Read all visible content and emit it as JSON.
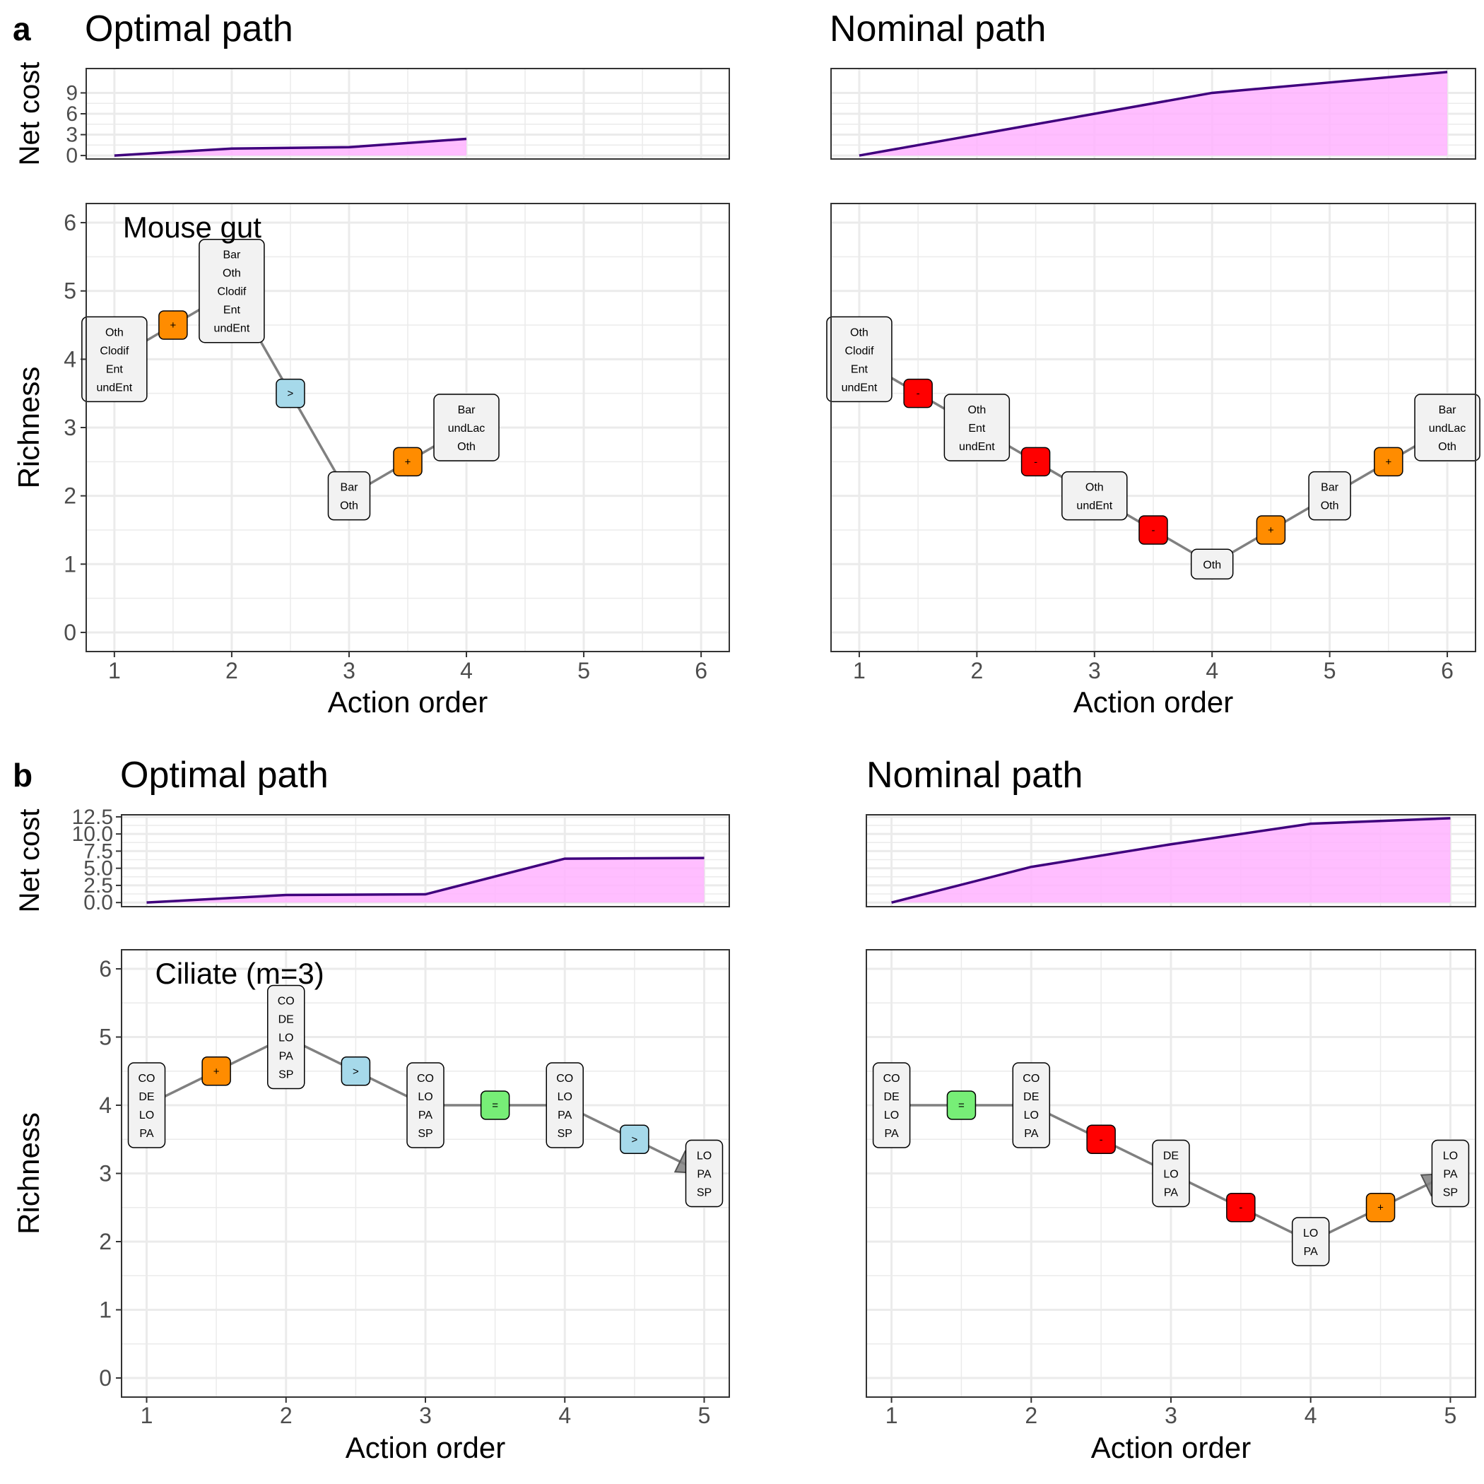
{
  "panel_labels": [
    "a",
    "b"
  ],
  "chart_data": [
    {
      "id": "a-optimal",
      "type": "line",
      "panel_label": "a",
      "title": "Optimal path",
      "annotation": "Mouse gut",
      "xlabel": "Action order",
      "xlim": [
        0.76,
        6.24
      ],
      "x_ticks": [
        1,
        2,
        3,
        4,
        5,
        6
      ],
      "cost": {
        "ylabel": "Net cost",
        "ylim": [
          -0.5,
          12.5
        ],
        "y_ticks": [
          0,
          3,
          6,
          9
        ],
        "x": [
          1,
          2,
          3,
          4
        ],
        "y": [
          0,
          1,
          1.2,
          2.4
        ],
        "line_color": "#3f007d",
        "fill_color": "#ffb3ff"
      },
      "richness": {
        "ylabel": "Richness",
        "ylim": [
          -0.28,
          6.28
        ],
        "y_ticks": [
          0,
          1,
          2,
          3,
          4,
          5,
          6
        ],
        "states": [
          {
            "x": 1,
            "y": 4,
            "labels": [
              "Oth",
              "Clodif",
              "Ent",
              "undEnt"
            ]
          },
          {
            "x": 2,
            "y": 5,
            "labels": [
              "Bar",
              "Oth",
              "Clodif",
              "Ent",
              "undEnt"
            ]
          },
          {
            "x": 3,
            "y": 2,
            "labels": [
              "Bar",
              "Oth"
            ]
          },
          {
            "x": 4,
            "y": 3,
            "labels": [
              "Bar",
              "undLac",
              "Oth"
            ]
          }
        ],
        "actions": [
          {
            "x": 1.5,
            "y": 4.5,
            "symbol": "+",
            "kind": "add"
          },
          {
            "x": 2.5,
            "y": 3.5,
            "symbol": ">",
            "kind": "replace"
          },
          {
            "x": 3.5,
            "y": 2.5,
            "symbol": "+",
            "kind": "add"
          }
        ]
      }
    },
    {
      "id": "a-nominal",
      "type": "line",
      "panel_label": "",
      "title": "Nominal path",
      "annotation": "",
      "xlabel": "Action order",
      "xlim": [
        0.76,
        6.24
      ],
      "x_ticks": [
        1,
        2,
        3,
        4,
        5,
        6
      ],
      "cost": {
        "ylabel": "",
        "ylim": [
          -0.5,
          12.5
        ],
        "y_ticks": [
          0,
          3,
          6,
          9
        ],
        "x": [
          1,
          2,
          3,
          4,
          5,
          6
        ],
        "y": [
          0,
          3,
          6,
          9,
          10.5,
          12
        ],
        "line_color": "#3f007d",
        "fill_color": "#ffb3ff"
      },
      "richness": {
        "ylabel": "",
        "ylim": [
          -0.28,
          6.28
        ],
        "y_ticks": [
          0,
          1,
          2,
          3,
          4,
          5,
          6
        ],
        "states": [
          {
            "x": 1,
            "y": 4,
            "labels": [
              "Oth",
              "Clodif",
              "Ent",
              "undEnt"
            ]
          },
          {
            "x": 2,
            "y": 3,
            "labels": [
              "Oth",
              "Ent",
              "undEnt"
            ]
          },
          {
            "x": 3,
            "y": 2,
            "labels": [
              "Oth",
              "undEnt"
            ]
          },
          {
            "x": 4,
            "y": 1,
            "labels": [
              "Oth"
            ]
          },
          {
            "x": 5,
            "y": 2,
            "labels": [
              "Bar",
              "Oth"
            ]
          },
          {
            "x": 6,
            "y": 3,
            "labels": [
              "Bar",
              "undLac",
              "Oth"
            ]
          }
        ],
        "actions": [
          {
            "x": 1.5,
            "y": 3.5,
            "symbol": "-",
            "kind": "remove"
          },
          {
            "x": 2.5,
            "y": 2.5,
            "symbol": "-",
            "kind": "remove"
          },
          {
            "x": 3.5,
            "y": 1.5,
            "symbol": "-",
            "kind": "remove"
          },
          {
            "x": 4.5,
            "y": 1.5,
            "symbol": "+",
            "kind": "add"
          },
          {
            "x": 5.5,
            "y": 2.5,
            "symbol": "+",
            "kind": "add"
          }
        ]
      }
    },
    {
      "id": "b-optimal",
      "type": "line",
      "panel_label": "b",
      "title": "Optimal path",
      "annotation": "Ciliate (m=3)",
      "xlabel": "Action order",
      "xlim": [
        0.82,
        5.18
      ],
      "x_ticks": [
        1,
        2,
        3,
        4,
        5
      ],
      "cost": {
        "ylabel": "Net cost",
        "ylim": [
          -0.6,
          12.8
        ],
        "y_ticks": [
          0.0,
          2.5,
          5.0,
          7.5,
          10.0,
          12.5
        ],
        "y_tick_labels": [
          "0.0",
          "2.5",
          "5.0",
          "7.5",
          "10.0",
          "12.5"
        ],
        "x": [
          1,
          2,
          3,
          4,
          5
        ],
        "y": [
          0,
          1.1,
          1.2,
          6.4,
          6.5
        ],
        "line_color": "#3f007d",
        "fill_color": "#ffb3ff"
      },
      "richness": {
        "ylabel": "Richness",
        "ylim": [
          -0.28,
          6.28
        ],
        "y_ticks": [
          0,
          1,
          2,
          3,
          4,
          5,
          6
        ],
        "states": [
          {
            "x": 1,
            "y": 4,
            "labels": [
              "CO",
              "DE",
              "LO",
              "PA"
            ]
          },
          {
            "x": 2,
            "y": 5,
            "labels": [
              "CO",
              "DE",
              "LO",
              "PA",
              "SP"
            ]
          },
          {
            "x": 3,
            "y": 4,
            "labels": [
              "CO",
              "LO",
              "PA",
              "SP"
            ]
          },
          {
            "x": 4,
            "y": 4,
            "labels": [
              "CO",
              "LO",
              "PA",
              "SP"
            ]
          },
          {
            "x": 5,
            "y": 3,
            "labels": [
              "LO",
              "PA",
              "SP"
            ]
          }
        ],
        "actions": [
          {
            "x": 1.5,
            "y": 4.5,
            "symbol": "+",
            "kind": "add"
          },
          {
            "x": 2.5,
            "y": 4.5,
            "symbol": ">",
            "kind": "replace"
          },
          {
            "x": 3.5,
            "y": 4.0,
            "symbol": "=",
            "kind": "keep"
          },
          {
            "x": 4.5,
            "y": 3.5,
            "symbol": ">",
            "kind": "replace"
          }
        ]
      }
    },
    {
      "id": "b-nominal",
      "type": "line",
      "panel_label": "",
      "title": "Nominal path",
      "annotation": "",
      "xlabel": "Action order",
      "xlim": [
        0.82,
        5.18
      ],
      "x_ticks": [
        1,
        2,
        3,
        4,
        5
      ],
      "cost": {
        "ylabel": "",
        "ylim": [
          -0.6,
          12.8
        ],
        "y_ticks": [
          0.0,
          2.5,
          5.0,
          7.5,
          10.0,
          12.5
        ],
        "x": [
          1,
          2,
          3,
          4,
          5
        ],
        "y": [
          0,
          5.2,
          8.5,
          11.5,
          12.3
        ],
        "line_color": "#3f007d",
        "fill_color": "#ffb3ff"
      },
      "richness": {
        "ylabel": "",
        "ylim": [
          -0.28,
          6.28
        ],
        "y_ticks": [
          0,
          1,
          2,
          3,
          4,
          5,
          6
        ],
        "states": [
          {
            "x": 1,
            "y": 4,
            "labels": [
              "CO",
              "DE",
              "LO",
              "PA"
            ]
          },
          {
            "x": 2,
            "y": 4,
            "labels": [
              "CO",
              "DE",
              "LO",
              "PA"
            ]
          },
          {
            "x": 3,
            "y": 3,
            "labels": [
              "DE",
              "LO",
              "PA"
            ]
          },
          {
            "x": 4,
            "y": 2,
            "labels": [
              "LO",
              "PA"
            ]
          },
          {
            "x": 5,
            "y": 3,
            "labels": [
              "LO",
              "PA",
              "SP"
            ]
          }
        ],
        "actions": [
          {
            "x": 1.5,
            "y": 4.0,
            "symbol": "=",
            "kind": "keep"
          },
          {
            "x": 2.5,
            "y": 3.5,
            "symbol": "-",
            "kind": "remove"
          },
          {
            "x": 3.5,
            "y": 2.5,
            "symbol": "-",
            "kind": "remove"
          },
          {
            "x": 4.5,
            "y": 2.5,
            "symbol": "+",
            "kind": "add"
          }
        ]
      }
    }
  ],
  "action_colors": {
    "add": "#ff8c00",
    "remove": "#ff0000",
    "replace": "#a6d9ea",
    "keep": "#77ee77"
  },
  "style": {
    "state_fill": "#f2f2f2",
    "grid_color": "#ebebeb",
    "path_color": "#808080",
    "border_color": "#333333"
  }
}
